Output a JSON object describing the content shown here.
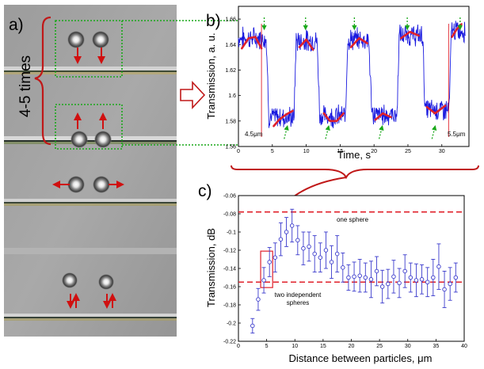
{
  "panel_a": {
    "letter": "a)",
    "repeat_label": "4-5 times"
  },
  "panel_b": {
    "letter": "b)",
    "note_left": "4.5μm",
    "note_right": "5.5μm"
  },
  "panel_c": {
    "letter": "c)",
    "note_one": "one sphere",
    "note_two_line1": "two independent",
    "note_two_line2": "spheres"
  },
  "colors": {
    "trace": "#1a1adf",
    "fit": "#e0202a",
    "arrow_red": "#d01010",
    "guide_green": "#1aa81a",
    "marker": "#3a3acc"
  },
  "chart_data": [
    {
      "type": "line",
      "xlabel": "Time, s",
      "ylabel": "Transmission, a. u.",
      "xlim": [
        0,
        34
      ],
      "ylim": [
        1.56,
        1.67
      ],
      "xticks": [
        0,
        5,
        10,
        15,
        20,
        25,
        30
      ],
      "yticks": [
        1.56,
        1.58,
        1.6,
        1.62,
        1.64,
        1.66
      ],
      "ytick_labels": [
        "1.56",
        "1.58",
        "1.6",
        "1.62",
        "1.64",
        "1.66"
      ],
      "levels": [
        {
          "t0": 0.0,
          "t1": 4.1,
          "y": 1.645
        },
        {
          "t0": 4.5,
          "t1": 8.2,
          "y": 1.583
        },
        {
          "t0": 8.5,
          "t1": 11.6,
          "y": 1.643
        },
        {
          "t0": 12.0,
          "t1": 15.8,
          "y": 1.584
        },
        {
          "t0": 16.1,
          "t1": 19.2,
          "y": 1.644
        },
        {
          "t0": 19.7,
          "t1": 23.4,
          "y": 1.585
        },
        {
          "t0": 23.7,
          "t1": 27.2,
          "y": 1.647
        },
        {
          "t0": 27.5,
          "t1": 31.1,
          "y": 1.589
        },
        {
          "t0": 31.4,
          "t1": 33.5,
          "y": 1.651
        }
      ],
      "fits": [
        {
          "t": [
            0.5,
            1.5,
            2.5,
            3.4
          ],
          "y": [
            1.637,
            1.645,
            1.646,
            1.637
          ]
        },
        {
          "t": [
            5.2,
            6.0,
            7.0,
            8.0
          ],
          "y": [
            1.576,
            1.581,
            1.585,
            1.588
          ]
        },
        {
          "t": [
            9.0,
            10.0,
            11.0
          ],
          "y": [
            1.638,
            1.644,
            1.636
          ]
        },
        {
          "t": [
            12.6,
            13.5,
            14.5,
            15.5
          ],
          "y": [
            1.586,
            1.58,
            1.58,
            1.586
          ]
        },
        {
          "t": [
            16.6,
            17.8,
            19.0
          ],
          "y": [
            1.638,
            1.645,
            1.641
          ]
        },
        {
          "t": [
            20.2,
            21.3,
            22.5
          ],
          "y": [
            1.581,
            1.586,
            1.583
          ]
        },
        {
          "t": [
            24.0,
            25.3,
            26.6
          ],
          "y": [
            1.645,
            1.65,
            1.647
          ]
        },
        {
          "t": [
            27.8,
            29.0,
            30.5
          ],
          "y": [
            1.591,
            1.586,
            1.592
          ]
        },
        {
          "t": [
            31.5,
            32.2,
            32.9
          ],
          "y": [
            1.646,
            1.652,
            1.656
          ]
        }
      ],
      "guide_times": [
        3.8,
        7.1,
        9.9,
        13.2,
        17.1,
        21.1,
        24.9,
        28.9,
        32.7
      ],
      "marker_times": [
        3.4,
        31.0
      ]
    },
    {
      "type": "scatter",
      "xlabel": "Distance between particles, μm",
      "ylabel": "Transmission, dB",
      "xlim": [
        0,
        40
      ],
      "ylim": [
        -0.22,
        -0.06
      ],
      "xticks": [
        0,
        5,
        10,
        15,
        20,
        25,
        30,
        35,
        40
      ],
      "yticks": [
        -0.22,
        -0.2,
        -0.18,
        -0.16,
        -0.14,
        -0.12,
        -0.1,
        -0.08,
        -0.06
      ],
      "ytick_labels": [
        "-0.22",
        "-0.2",
        "-0.18",
        "-0.16",
        "-0.14",
        "-0.12",
        "-0.1",
        "-0.08",
        "-0.06"
      ],
      "reference_lines": [
        -0.078,
        -0.155
      ],
      "highlight_range": [
        4.5,
        5.5
      ],
      "points": [
        {
          "x": 2.5,
          "y": -0.203,
          "e": 0.008
        },
        {
          "x": 3.5,
          "y": -0.174,
          "e": 0.012
        },
        {
          "x": 4.5,
          "y": -0.153,
          "e": 0.014
        },
        {
          "x": 5.5,
          "y": -0.133,
          "e": 0.016
        },
        {
          "x": 6.5,
          "y": -0.128,
          "e": 0.016
        },
        {
          "x": 7.5,
          "y": -0.108,
          "e": 0.018
        },
        {
          "x": 8.5,
          "y": -0.1,
          "e": 0.016
        },
        {
          "x": 9.5,
          "y": -0.093,
          "e": 0.018
        },
        {
          "x": 10.5,
          "y": -0.109,
          "e": 0.016
        },
        {
          "x": 11.5,
          "y": -0.118,
          "e": 0.018
        },
        {
          "x": 12.5,
          "y": -0.116,
          "e": 0.016
        },
        {
          "x": 13.5,
          "y": -0.124,
          "e": 0.02
        },
        {
          "x": 14.5,
          "y": -0.128,
          "e": 0.016
        },
        {
          "x": 15.5,
          "y": -0.12,
          "e": 0.02
        },
        {
          "x": 16.5,
          "y": -0.133,
          "e": 0.018
        },
        {
          "x": 17.5,
          "y": -0.124,
          "e": 0.02
        },
        {
          "x": 18.5,
          "y": -0.139,
          "e": 0.016
        },
        {
          "x": 19.5,
          "y": -0.15,
          "e": 0.014
        },
        {
          "x": 20.5,
          "y": -0.149,
          "e": 0.016
        },
        {
          "x": 21.5,
          "y": -0.148,
          "e": 0.018
        },
        {
          "x": 22.5,
          "y": -0.15,
          "e": 0.016
        },
        {
          "x": 23.5,
          "y": -0.152,
          "e": 0.02
        },
        {
          "x": 24.5,
          "y": -0.143,
          "e": 0.016
        },
        {
          "x": 25.5,
          "y": -0.16,
          "e": 0.018
        },
        {
          "x": 26.5,
          "y": -0.157,
          "e": 0.016
        },
        {
          "x": 27.5,
          "y": -0.149,
          "e": 0.018
        },
        {
          "x": 28.5,
          "y": -0.156,
          "e": 0.016
        },
        {
          "x": 29.5,
          "y": -0.143,
          "e": 0.018
        },
        {
          "x": 30.5,
          "y": -0.15,
          "e": 0.016
        },
        {
          "x": 31.5,
          "y": -0.153,
          "e": 0.018
        },
        {
          "x": 32.5,
          "y": -0.152,
          "e": 0.016
        },
        {
          "x": 33.5,
          "y": -0.155,
          "e": 0.016
        },
        {
          "x": 34.5,
          "y": -0.15,
          "e": 0.02
        },
        {
          "x": 35.5,
          "y": -0.138,
          "e": 0.025
        },
        {
          "x": 36.5,
          "y": -0.163,
          "e": 0.02
        },
        {
          "x": 37.5,
          "y": -0.157,
          "e": 0.018
        },
        {
          "x": 38.5,
          "y": -0.15,
          "e": 0.016
        }
      ]
    }
  ]
}
